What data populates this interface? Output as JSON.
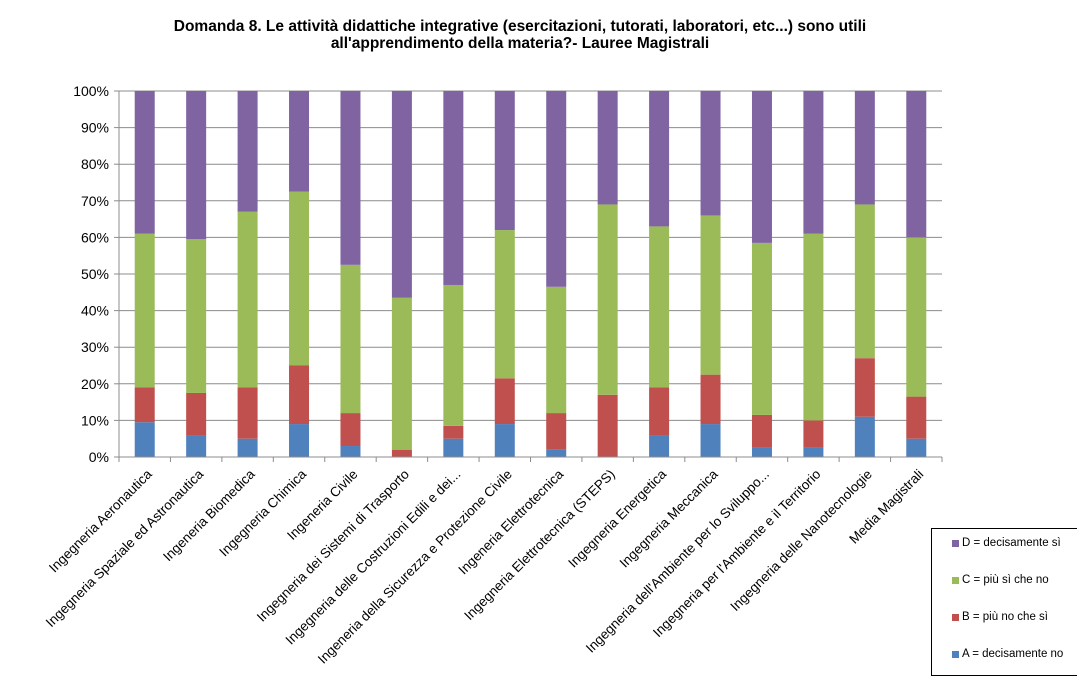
{
  "title": {
    "line1": "Domanda 8. Le attività didattiche integrative (esercitazioni, tutorati, laboratori, etc...) sono utili",
    "line2": "all'apprendimento della materia?- Lauree Magistrali"
  },
  "chart_data": {
    "type": "bar",
    "stacked": true,
    "percent": true,
    "title": "Domanda 8. Le attività didattiche integrative (esercitazioni, tutorati, laboratori, etc...) sono utili all'apprendimento della materia?- Lauree Magistrali",
    "xlabel": "",
    "ylabel": "",
    "ylim": [
      0,
      100
    ],
    "yticks": [
      "0%",
      "10%",
      "20%",
      "30%",
      "40%",
      "50%",
      "60%",
      "70%",
      "80%",
      "90%",
      "100%"
    ],
    "grid": true,
    "legend_position": "bottom-right",
    "categories": [
      "Ingegneria Aeronautica",
      "Ingegneria Spaziale ed Astronautica",
      "Ingeneria Biomedica",
      "Ingegneria Chimica",
      "Ingeneria Civile",
      "Ingegneria dei Sistemi di Trasporto",
      "Ingegneria delle Costruzioni Edili e dei...",
      "Ingeneria della Sicurezza e Protezione Civile",
      "Ingeneria Elettrotecnica",
      "Ingegneria Elettrotecnica (STEPS)",
      "Ingegneria Energetica",
      "Ingegneria Meccanica",
      "Ingegneria dell'Ambiente per lo Sviluppo...",
      "Ingegneria per l'Ambiente e il Territorio",
      "Ingegneria delle Nanotecnologie",
      "Media Magistrali"
    ],
    "series": [
      {
        "name": "A = decisamente no",
        "color": "#4f81bd",
        "values": [
          9.5,
          6,
          5,
          9,
          3,
          0,
          5,
          9,
          2,
          0,
          6,
          9,
          2.5,
          2.5,
          11,
          5
        ]
      },
      {
        "name": "B = più no che sì",
        "color": "#c0504d",
        "values": [
          9.5,
          11.5,
          14,
          16,
          9,
          2,
          3.5,
          12.5,
          10,
          17,
          13,
          13.5,
          9,
          7.5,
          16,
          11.5
        ]
      },
      {
        "name": "C = più sì che no",
        "color": "#9bbb59",
        "values": [
          42,
          42,
          48,
          47.5,
          40.5,
          41.5,
          38.5,
          40.5,
          34.5,
          52,
          44,
          43.5,
          47,
          51,
          42,
          43.5
        ]
      },
      {
        "name": "D = decisamente sì",
        "color": "#8064a2",
        "values": [
          39,
          40.5,
          33,
          27.5,
          47.5,
          56.5,
          53,
          38,
          53.5,
          31,
          37,
          34,
          41.5,
          39,
          31,
          40
        ]
      }
    ]
  }
}
